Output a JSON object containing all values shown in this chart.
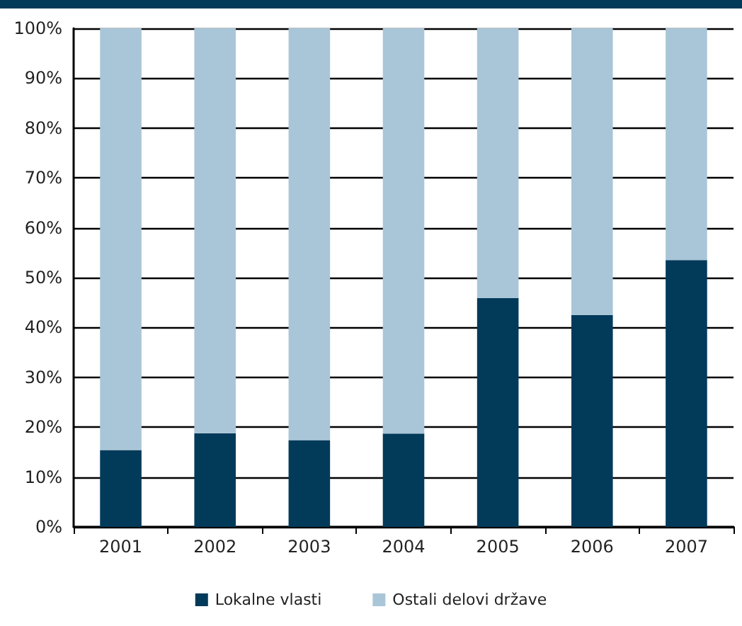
{
  "chart_data": {
    "type": "bar",
    "stacked": true,
    "categories": [
      "2001",
      "2002",
      "2003",
      "2004",
      "2005",
      "2006",
      "2007"
    ],
    "series": [
      {
        "name": "Lokalne vlasti",
        "color": "#023a5a",
        "values": [
          15.4,
          18.8,
          17.4,
          18.7,
          45.9,
          42.5,
          53.5
        ]
      },
      {
        "name": "Ostali delovi države",
        "color": "#a9c6d8",
        "values": [
          84.6,
          81.2,
          82.6,
          81.3,
          54.1,
          57.5,
          46.5
        ]
      }
    ],
    "ylim": [
      0,
      100
    ],
    "yticks": [
      {
        "value": 0,
        "label": "0%"
      },
      {
        "value": 10,
        "label": "10%"
      },
      {
        "value": 20,
        "label": "20%"
      },
      {
        "value": 30,
        "label": "30%"
      },
      {
        "value": 40,
        "label": "40%"
      },
      {
        "value": 50,
        "label": "50%"
      },
      {
        "value": 60,
        "label": "60%"
      },
      {
        "value": 70,
        "label": "70%"
      },
      {
        "value": 80,
        "label": "80%"
      },
      {
        "value": 90,
        "label": "90%"
      },
      {
        "value": 100,
        "label": "100%"
      }
    ],
    "grid": "y",
    "legend": "bottom"
  }
}
